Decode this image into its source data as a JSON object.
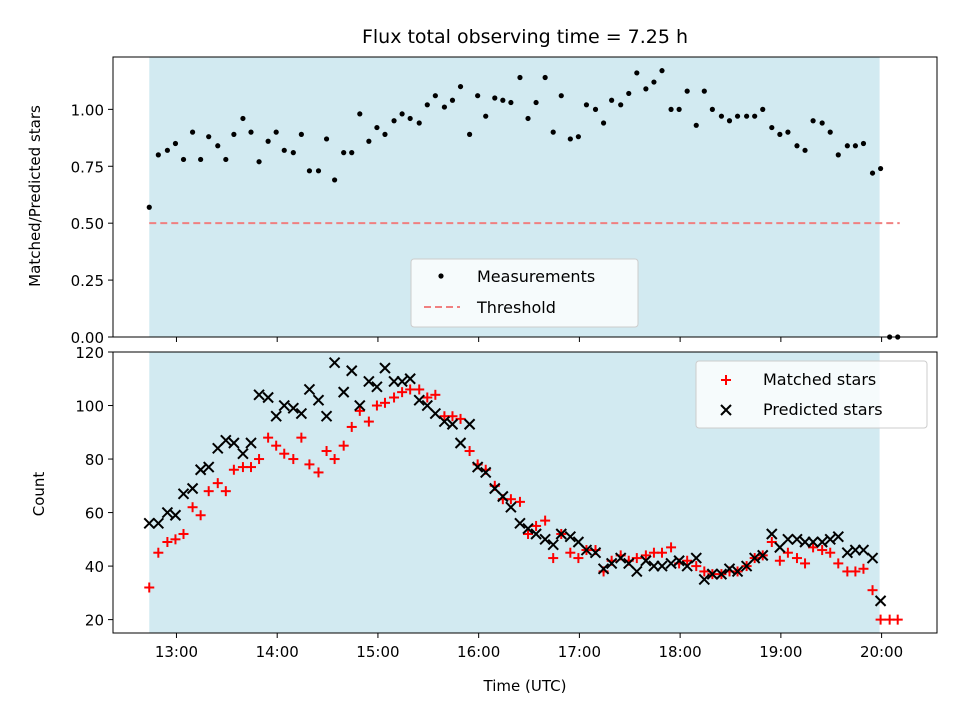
{
  "chart_data": [
    {
      "type": "scatter",
      "title": "Flux total observing time = 7.25 h",
      "ylabel": "Matched/Predicted stars",
      "xlabel": "",
      "xlim": [
        12.37,
        20.55
      ],
      "ylim": [
        0.0,
        1.23
      ],
      "yticks": [
        0.0,
        0.25,
        0.5,
        0.75,
        1.0
      ],
      "ytick_labels": [
        "0.00",
        "0.25",
        "0.50",
        "0.75",
        "1.00"
      ],
      "grid": false,
      "legend_position": "lower-center",
      "shaded_span": {
        "x": [
          12.73,
          19.98
        ],
        "color": "#add8e6"
      },
      "colors": {
        "measurements": "#000000",
        "threshold": "#f08080",
        "shade": "#add8e6"
      },
      "series": [
        {
          "name": "Measurements",
          "marker": "dot",
          "x": [
            12.73,
            12.82,
            12.91,
            12.99,
            13.07,
            13.16,
            13.24,
            13.32,
            13.41,
            13.49,
            13.57,
            13.66,
            13.74,
            13.82,
            13.91,
            13.99,
            14.07,
            14.16,
            14.24,
            14.32,
            14.41,
            14.49,
            14.57,
            14.66,
            14.74,
            14.82,
            14.91,
            14.99,
            15.07,
            15.16,
            15.24,
            15.32,
            15.41,
            15.49,
            15.57,
            15.66,
            15.74,
            15.82,
            15.91,
            15.99,
            16.07,
            16.16,
            16.24,
            16.32,
            16.41,
            16.49,
            16.57,
            16.66,
            16.74,
            16.82,
            16.91,
            16.99,
            17.07,
            17.16,
            17.24,
            17.32,
            17.41,
            17.49,
            17.57,
            17.66,
            17.74,
            17.82,
            17.91,
            17.99,
            18.07,
            18.16,
            18.24,
            18.32,
            18.41,
            18.49,
            18.57,
            18.66,
            18.74,
            18.82,
            18.91,
            18.99,
            19.07,
            19.16,
            19.24,
            19.32,
            19.41,
            19.49,
            19.57,
            19.66,
            19.74,
            19.82,
            19.91,
            19.99,
            20.08,
            20.16
          ],
          "y": [
            0.57,
            0.8,
            0.82,
            0.85,
            0.78,
            0.9,
            0.78,
            0.88,
            0.84,
            0.78,
            0.89,
            0.96,
            0.9,
            0.77,
            0.86,
            0.9,
            0.82,
            0.81,
            0.89,
            0.73,
            0.73,
            0.87,
            0.69,
            0.81,
            0.81,
            0.98,
            0.86,
            0.92,
            0.89,
            0.95,
            0.98,
            0.96,
            0.94,
            1.02,
            1.06,
            1.01,
            1.04,
            1.1,
            0.89,
            1.06,
            0.97,
            1.05,
            1.04,
            1.03,
            1.14,
            0.96,
            1.03,
            1.14,
            0.9,
            1.06,
            0.87,
            0.88,
            1.02,
            1.0,
            0.94,
            1.04,
            1.02,
            1.07,
            1.16,
            1.09,
            1.12,
            1.17,
            1.0,
            1.0,
            1.08,
            0.93,
            1.08,
            1.0,
            0.97,
            0.95,
            0.97,
            0.97,
            0.97,
            1.0,
            0.92,
            0.89,
            0.9,
            0.84,
            0.82,
            0.95,
            0.94,
            0.9,
            0.8,
            0.84,
            0.84,
            0.85,
            0.72,
            0.74,
            0.0,
            0.0
          ]
        },
        {
          "name": "Threshold",
          "marker": "dashed-line",
          "x": [
            12.73,
            20.18
          ],
          "y": [
            0.5,
            0.5
          ]
        }
      ]
    },
    {
      "type": "scatter",
      "title": "",
      "ylabel": "Count",
      "xlabel": "Time (UTC)",
      "xlim": [
        12.37,
        20.55
      ],
      "ylim": [
        15,
        120
      ],
      "yticks": [
        20,
        40,
        60,
        80,
        100,
        120
      ],
      "ytick_labels": [
        "20",
        "40",
        "60",
        "80",
        "100",
        "120"
      ],
      "xticks": [
        13,
        14,
        15,
        16,
        17,
        18,
        19,
        20
      ],
      "xtick_labels": [
        "13:00",
        "14:00",
        "15:00",
        "16:00",
        "17:00",
        "18:00",
        "19:00",
        "20:00"
      ],
      "grid": false,
      "legend_position": "top-right",
      "shaded_span": {
        "x": [
          12.73,
          19.98
        ],
        "color": "#add8e6"
      },
      "colors": {
        "matched": "#ff0000",
        "predicted": "#000000",
        "shade": "#add8e6"
      },
      "series": [
        {
          "name": "Matched stars",
          "marker": "plus",
          "x": [
            12.73,
            12.82,
            12.91,
            12.99,
            13.07,
            13.16,
            13.24,
            13.32,
            13.41,
            13.49,
            13.57,
            13.66,
            13.74,
            13.82,
            13.91,
            13.99,
            14.07,
            14.16,
            14.24,
            14.32,
            14.41,
            14.49,
            14.57,
            14.66,
            14.74,
            14.82,
            14.91,
            14.99,
            15.07,
            15.16,
            15.24,
            15.32,
            15.41,
            15.49,
            15.57,
            15.66,
            15.74,
            15.82,
            15.91,
            15.99,
            16.07,
            16.16,
            16.24,
            16.32,
            16.41,
            16.49,
            16.57,
            16.66,
            16.74,
            16.82,
            16.91,
            16.99,
            17.07,
            17.16,
            17.24,
            17.32,
            17.41,
            17.49,
            17.57,
            17.66,
            17.74,
            17.82,
            17.91,
            17.99,
            18.07,
            18.16,
            18.24,
            18.32,
            18.41,
            18.49,
            18.57,
            18.66,
            18.74,
            18.82,
            18.91,
            18.99,
            19.07,
            19.16,
            19.24,
            19.32,
            19.41,
            19.49,
            19.57,
            19.66,
            19.74,
            19.82,
            19.91,
            19.99,
            20.08,
            20.16
          ],
          "y": [
            32,
            45,
            49,
            50,
            52,
            62,
            59,
            68,
            71,
            68,
            76,
            77,
            77,
            80,
            88,
            85,
            82,
            80,
            88,
            78,
            75,
            83,
            80,
            85,
            92,
            98,
            94,
            100,
            101,
            103,
            105,
            106,
            106,
            103,
            104,
            96,
            96,
            95,
            83,
            78,
            76,
            70,
            65,
            65,
            64,
            52,
            55,
            57,
            43,
            52,
            45,
            43,
            46,
            46,
            38,
            42,
            44,
            42,
            43,
            44,
            45,
            45,
            47,
            41,
            42,
            40,
            38,
            37,
            37,
            38,
            38,
            40,
            43,
            44,
            49,
            42,
            45,
            43,
            41,
            47,
            46,
            45,
            41,
            38,
            38,
            39,
            31,
            20,
            20,
            20
          ]
        },
        {
          "name": "Predicted stars",
          "marker": "x",
          "x": [
            12.73,
            12.82,
            12.91,
            12.99,
            13.07,
            13.16,
            13.24,
            13.32,
            13.41,
            13.49,
            13.57,
            13.66,
            13.74,
            13.82,
            13.91,
            13.99,
            14.07,
            14.16,
            14.24,
            14.32,
            14.41,
            14.49,
            14.57,
            14.66,
            14.74,
            14.82,
            14.91,
            14.99,
            15.07,
            15.16,
            15.24,
            15.32,
            15.41,
            15.49,
            15.57,
            15.66,
            15.74,
            15.82,
            15.91,
            15.99,
            16.07,
            16.16,
            16.24,
            16.32,
            16.41,
            16.49,
            16.57,
            16.66,
            16.74,
            16.82,
            16.91,
            16.99,
            17.07,
            17.16,
            17.24,
            17.32,
            17.41,
            17.49,
            17.57,
            17.66,
            17.74,
            17.82,
            17.91,
            17.99,
            18.07,
            18.16,
            18.24,
            18.32,
            18.41,
            18.49,
            18.57,
            18.66,
            18.74,
            18.82,
            18.91,
            18.99,
            19.07,
            19.16,
            19.24,
            19.32,
            19.41,
            19.49,
            19.57,
            19.66,
            19.74,
            19.82,
            19.91,
            19.99
          ],
          "y": [
            56,
            56,
            60,
            59,
            67,
            69,
            76,
            77,
            84,
            87,
            86,
            82,
            86,
            104,
            103,
            96,
            100,
            99,
            97,
            106,
            102,
            96,
            116,
            105,
            113,
            100,
            109,
            107,
            114,
            109,
            109,
            110,
            102,
            100,
            97,
            94,
            93,
            86,
            93,
            77,
            75,
            69,
            66,
            62,
            56,
            54,
            52,
            50,
            48,
            52,
            51,
            49,
            46,
            45,
            39,
            41,
            43,
            41,
            38,
            42,
            40,
            40,
            41,
            42,
            40,
            43,
            35,
            37,
            37,
            39,
            38,
            40,
            43,
            44,
            52,
            47,
            50,
            50,
            49,
            49,
            49,
            50,
            51,
            45,
            46,
            46,
            43,
            27
          ]
        }
      ]
    }
  ]
}
